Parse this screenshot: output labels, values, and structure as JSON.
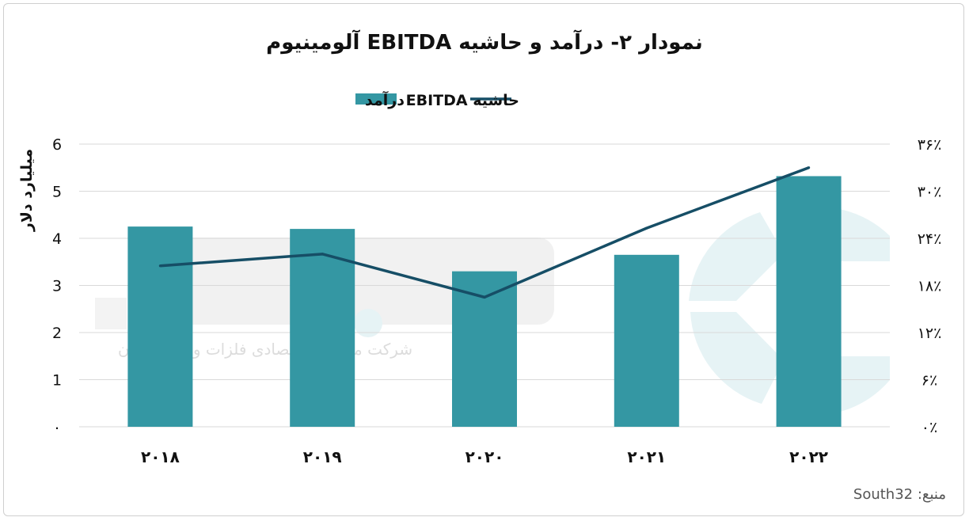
{
  "chart_data": {
    "type": "bar",
    "title": "نمودار ۲- درآمد و حاشیه EBITDA آلومینیوم",
    "categories": [
      "۲۰۱۸",
      "۲۰۱۹",
      "۲۰۲۰",
      "۲۰۲۱",
      "۲۰۲۲"
    ],
    "ylabel": "میلیارد دلار",
    "ylim": [
      0,
      6
    ],
    "yticks": [
      "۰",
      "1",
      "2",
      "3",
      "4",
      "5",
      "6"
    ],
    "y2lim": [
      0,
      36
    ],
    "y2ticks": [
      "۰٪",
      "۶٪",
      "۱۲٪",
      "۱۸٪",
      "۲۴٪",
      "۳۰٪",
      "۳۶٪"
    ],
    "legend_position": "top-center",
    "grid": true,
    "series": [
      {
        "name": "درآمد",
        "kind": "bar",
        "axis": "left",
        "color": "#3497a3",
        "values": [
          4.25,
          4.2,
          3.3,
          3.65,
          5.32
        ]
      },
      {
        "name": "حاشیه EBITDA",
        "kind": "line",
        "axis": "right",
        "color": "#164e66",
        "values": [
          20.5,
          22.0,
          16.5,
          25.3,
          33.0
        ]
      }
    ]
  },
  "source": "منبع: South32",
  "watermark": {
    "text": "شرکت مشاوره اقتصادی فلزات و مواد آرمان",
    "color": "#e6f3f5"
  }
}
